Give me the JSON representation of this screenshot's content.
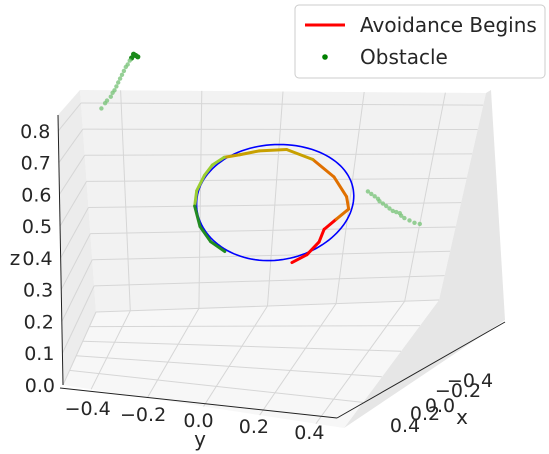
{
  "chart_data": {
    "type": "scatter",
    "projection": "3d",
    "grid": true,
    "legend_position": "top-right",
    "axes": {
      "x": {
        "label": "x",
        "ticks": [
          "−0.4",
          "−0.2",
          "0.0",
          "0.2",
          "0.4"
        ]
      },
      "y": {
        "label": "y",
        "ticks": [
          "−0.4",
          "−0.2",
          "0.0",
          "0.2",
          "0.4"
        ],
        "range": [
          -0.5,
          0.5
        ]
      },
      "z": {
        "label": "z",
        "ticks": [
          "0.0",
          "0.1",
          "0.2",
          "0.3",
          "0.4",
          "0.5",
          "0.6",
          "0.7",
          "0.8"
        ],
        "range": [
          0.0,
          0.85
        ]
      }
    },
    "legend": [
      {
        "label": "Avoidance Begins",
        "kind": "line",
        "color": "#ff0000"
      },
      {
        "label": "Obstacle",
        "kind": "point",
        "color": "#008000"
      }
    ],
    "reference_circle": {
      "color": "#0000ff",
      "plane": "y-z",
      "center": {
        "y": 0.0,
        "z": 0.41
      },
      "radius_y": 0.21,
      "radius_z": 0.23
    },
    "trajectory": {
      "colors": [
        "#ff0000",
        "#e07000",
        "#c8a000",
        "#9acd32",
        "#228b22"
      ],
      "points": [
        {
          "y": 0.06,
          "z": 0.17
        },
        {
          "y": 0.1,
          "z": 0.2
        },
        {
          "y": 0.13,
          "z": 0.25
        },
        {
          "y": 0.14,
          "z": 0.3
        },
        {
          "y": 0.17,
          "z": 0.34
        },
        {
          "y": 0.2,
          "z": 0.38
        },
        {
          "y": 0.19,
          "z": 0.43
        },
        {
          "y": 0.15,
          "z": 0.51
        },
        {
          "y": 0.09,
          "z": 0.58
        },
        {
          "y": 0.02,
          "z": 0.62
        },
        {
          "y": -0.05,
          "z": 0.615
        },
        {
          "y": -0.1,
          "z": 0.6
        },
        {
          "y": -0.14,
          "z": 0.59
        },
        {
          "y": -0.17,
          "z": 0.56
        },
        {
          "y": -0.19,
          "z": 0.52
        },
        {
          "y": -0.21,
          "z": 0.46
        },
        {
          "y": -0.215,
          "z": 0.4
        },
        {
          "y": -0.2,
          "z": 0.32
        },
        {
          "y": -0.17,
          "z": 0.26
        },
        {
          "y": -0.13,
          "z": 0.22
        }
      ]
    },
    "obstacles": [
      {
        "points": [
          {
            "y": -0.355,
            "z": 0.98
          },
          {
            "y": -0.36,
            "z": 0.985
          },
          {
            "y": -0.365,
            "z": 0.99
          },
          {
            "y": -0.37,
            "z": 0.975
          },
          {
            "y": -0.375,
            "z": 0.965
          },
          {
            "y": -0.38,
            "z": 0.95
          },
          {
            "y": -0.385,
            "z": 0.94
          },
          {
            "y": -0.39,
            "z": 0.925
          },
          {
            "y": -0.395,
            "z": 0.91
          },
          {
            "y": -0.4,
            "z": 0.895
          },
          {
            "y": -0.405,
            "z": 0.88
          },
          {
            "y": -0.41,
            "z": 0.865
          },
          {
            "y": -0.415,
            "z": 0.85
          },
          {
            "y": -0.42,
            "z": 0.84
          },
          {
            "y": -0.425,
            "z": 0.825
          },
          {
            "y": -0.435,
            "z": 0.81
          },
          {
            "y": -0.44,
            "z": 0.8
          },
          {
            "y": -0.45,
            "z": 0.78
          }
        ]
      },
      {
        "points": [
          {
            "y": 0.245,
            "z": 0.45
          },
          {
            "y": 0.255,
            "z": 0.44
          },
          {
            "y": 0.265,
            "z": 0.43
          },
          {
            "y": 0.275,
            "z": 0.42
          },
          {
            "y": 0.28,
            "z": 0.41
          },
          {
            "y": 0.29,
            "z": 0.4
          },
          {
            "y": 0.3,
            "z": 0.39
          },
          {
            "y": 0.31,
            "z": 0.38
          },
          {
            "y": 0.32,
            "z": 0.37
          },
          {
            "y": 0.33,
            "z": 0.365
          },
          {
            "y": 0.34,
            "z": 0.36
          },
          {
            "y": 0.345,
            "z": 0.35
          },
          {
            "y": 0.355,
            "z": 0.34
          },
          {
            "y": 0.37,
            "z": 0.33
          },
          {
            "y": 0.385,
            "z": 0.32
          },
          {
            "y": 0.4,
            "z": 0.315
          }
        ]
      }
    ]
  }
}
